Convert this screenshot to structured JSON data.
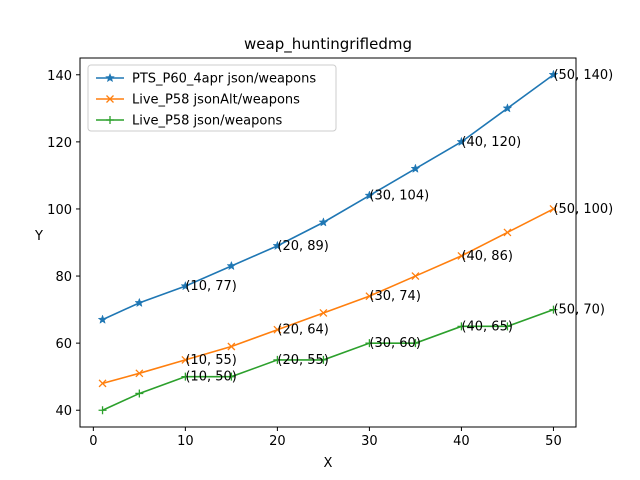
{
  "chart_data": {
    "type": "line",
    "title": "weap_huntingrifledmg",
    "xlabel": "X",
    "ylabel": "Y",
    "xlim": [
      -1.45,
      52.45
    ],
    "ylim": [
      35,
      145
    ],
    "xticks": [
      0,
      10,
      20,
      30,
      40,
      50
    ],
    "yticks": [
      40,
      60,
      80,
      100,
      120,
      140
    ],
    "grid": false,
    "legend": "top-left",
    "x": [
      1,
      5,
      10,
      15,
      20,
      25,
      30,
      35,
      40,
      45,
      50
    ],
    "series": [
      {
        "name": "PTS_P60_4apr json/weapons",
        "color": "#1f77b4",
        "marker": "star",
        "values": [
          67,
          72,
          77,
          83,
          89,
          96,
          104,
          112,
          120,
          130,
          140
        ]
      },
      {
        "name": "Live_P58 jsonAlt/weapons",
        "color": "#ff7f0e",
        "marker": "x",
        "values": [
          48,
          51,
          55,
          59,
          64,
          69,
          74,
          80,
          86,
          93,
          100
        ]
      },
      {
        "name": "Live_P58 json/weapons",
        "color": "#2ca02c",
        "marker": "plus",
        "values": [
          40,
          45,
          50,
          50,
          55,
          55,
          60,
          60,
          65,
          65,
          70
        ]
      }
    ],
    "annotations": [
      {
        "x": 10,
        "y": 77,
        "text": "(10, 77)"
      },
      {
        "x": 20,
        "y": 89,
        "text": "(20, 89)"
      },
      {
        "x": 30,
        "y": 104,
        "text": "(30, 104)"
      },
      {
        "x": 40,
        "y": 120,
        "text": "(40, 120)"
      },
      {
        "x": 50,
        "y": 140,
        "text": "(50, 140)"
      },
      {
        "x": 10,
        "y": 55,
        "text": "(10, 55)"
      },
      {
        "x": 20,
        "y": 64,
        "text": "(20, 64)"
      },
      {
        "x": 30,
        "y": 74,
        "text": "(30, 74)"
      },
      {
        "x": 40,
        "y": 86,
        "text": "(40, 86)"
      },
      {
        "x": 50,
        "y": 100,
        "text": "(50, 100)"
      },
      {
        "x": 10,
        "y": 50,
        "text": "(10, 50)"
      },
      {
        "x": 20,
        "y": 55,
        "text": "(20, 55)"
      },
      {
        "x": 30,
        "y": 60,
        "text": "(30, 60)"
      },
      {
        "x": 40,
        "y": 65,
        "text": "(40, 65)"
      },
      {
        "x": 50,
        "y": 70,
        "text": "(50, 70)"
      }
    ]
  }
}
